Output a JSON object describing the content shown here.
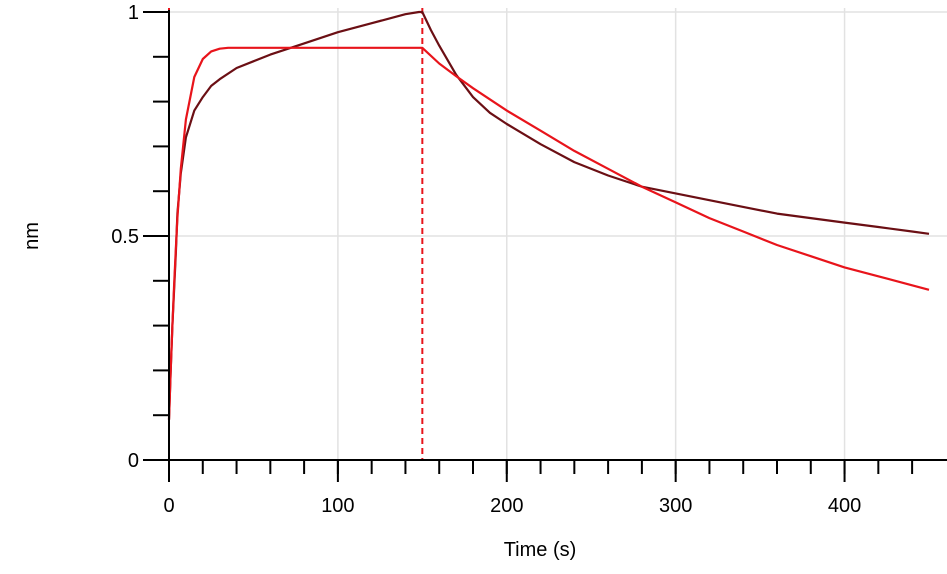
{
  "chart_data": {
    "type": "line",
    "title": "",
    "xlabel": "Time (s)",
    "ylabel": "nm",
    "xlim": [
      0,
      450
    ],
    "ylim": [
      0,
      1
    ],
    "x_ticks": [
      0,
      100,
      200,
      300,
      400
    ],
    "x_tick_labels": [
      "0",
      "100",
      "200",
      "300",
      "400"
    ],
    "y_ticks": [
      0,
      0.5,
      1
    ],
    "y_tick_labels": [
      "0",
      "0.5",
      "1"
    ],
    "grid": true,
    "legend": "none",
    "markers": [
      {
        "x": 0,
        "style": "dashed",
        "color": "#e8141b"
      },
      {
        "x": 150,
        "style": "dashed",
        "color": "#e8141b"
      }
    ],
    "series": [
      {
        "color": "#6b0f14",
        "x": [
          0,
          1,
          2,
          3,
          4,
          5,
          7,
          10,
          15,
          20,
          25,
          30,
          40,
          50,
          60,
          80,
          100,
          120,
          140,
          148,
          150,
          155,
          160,
          170,
          180,
          190,
          200,
          220,
          240,
          260,
          280,
          300,
          320,
          340,
          360,
          380,
          400,
          420,
          440,
          450
        ],
        "y": [
          0.09,
          0.2,
          0.3,
          0.38,
          0.46,
          0.55,
          0.64,
          0.72,
          0.78,
          0.81,
          0.835,
          0.85,
          0.875,
          0.89,
          0.905,
          0.93,
          0.955,
          0.975,
          0.995,
          1.0,
          1.0,
          0.96,
          0.925,
          0.86,
          0.81,
          0.775,
          0.75,
          0.705,
          0.665,
          0.635,
          0.61,
          0.595,
          0.58,
          0.565,
          0.55,
          0.54,
          0.53,
          0.52,
          0.51,
          0.505
        ]
      },
      {
        "color": "#e8141b",
        "x": [
          0,
          1,
          2,
          3,
          4,
          5,
          7,
          10,
          15,
          20,
          25,
          30,
          35,
          40,
          50,
          60,
          80,
          100,
          120,
          140,
          150,
          160,
          170,
          180,
          200,
          220,
          240,
          260,
          280,
          300,
          320,
          340,
          360,
          380,
          400,
          420,
          440,
          450
        ],
        "y": [
          0.09,
          0.2,
          0.3,
          0.39,
          0.47,
          0.54,
          0.65,
          0.76,
          0.855,
          0.895,
          0.912,
          0.918,
          0.92,
          0.92,
          0.92,
          0.92,
          0.92,
          0.92,
          0.92,
          0.92,
          0.92,
          0.885,
          0.857,
          0.83,
          0.78,
          0.735,
          0.69,
          0.65,
          0.61,
          0.575,
          0.54,
          0.51,
          0.48,
          0.455,
          0.43,
          0.41,
          0.39,
          0.38
        ]
      }
    ]
  }
}
